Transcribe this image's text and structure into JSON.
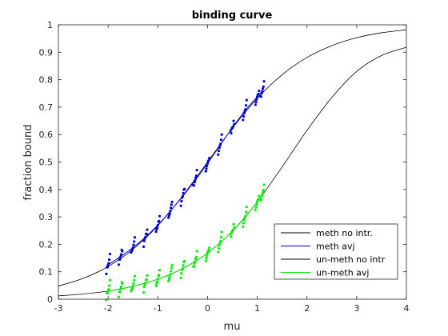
{
  "chart_data": {
    "type": "line",
    "title": "binding curve",
    "xlabel": "mu",
    "ylabel": "fraction bound",
    "xlim": [
      -3,
      4
    ],
    "ylim": [
      0,
      1
    ],
    "xticks": [
      -3,
      -2,
      -1,
      0,
      1,
      2,
      3,
      4
    ],
    "yticks": [
      0,
      0.1,
      0.2,
      0.3,
      0.4,
      0.5,
      0.6,
      0.7,
      0.8,
      0.9,
      1
    ],
    "xtick_labels": [
      "-3",
      "-2",
      "-1",
      "0",
      "1",
      "2",
      "3",
      "4"
    ],
    "ytick_labels": [
      "0",
      "0.1",
      "0.2",
      "0.3",
      "0.4",
      "0.5",
      "0.6",
      "0.7",
      "0.8",
      "0.9",
      "1"
    ],
    "grid": false,
    "legend_position": "bottom-right",
    "series": [
      {
        "name": "meth no intr.",
        "kind": "line",
        "color": "#000000",
        "x": [
          -3,
          -2.5,
          -2,
          -1.5,
          -1,
          -0.5,
          0,
          0.5,
          1,
          1.5,
          2,
          2.5,
          3,
          3.5,
          4
        ],
        "y": [
          0.048,
          0.076,
          0.119,
          0.182,
          0.268,
          0.377,
          0.5,
          0.623,
          0.732,
          0.818,
          0.881,
          0.924,
          0.953,
          0.971,
          0.982
        ]
      },
      {
        "name": "meth avj",
        "kind": "scatter",
        "color": "#0000dd",
        "x": [
          -2,
          -1.75,
          -1.5,
          -1.25,
          -1,
          -0.75,
          -0.5,
          -0.25,
          0,
          0.25,
          0.5,
          0.75,
          1,
          1.1
        ],
        "y": [
          0.125,
          0.155,
          0.188,
          0.226,
          0.27,
          0.321,
          0.375,
          0.433,
          0.495,
          0.56,
          0.625,
          0.686,
          0.738,
          0.757
        ]
      },
      {
        "name": "un-meth no intr",
        "kind": "line",
        "color": "#000000",
        "x": [
          -3,
          -2.5,
          -2,
          -1.5,
          -1,
          -0.5,
          0,
          0.5,
          1,
          1.5,
          2,
          2.5,
          3,
          3.5,
          4
        ],
        "y": [
          0.012,
          0.019,
          0.03,
          0.047,
          0.073,
          0.112,
          0.168,
          0.248,
          0.355,
          0.482,
          0.615,
          0.735,
          0.83,
          0.888,
          0.918
        ]
      },
      {
        "name": "un-meth avj",
        "kind": "scatter",
        "color": "#00ee00",
        "x": [
          -2,
          -1.75,
          -1.5,
          -1.25,
          -1,
          -0.75,
          -0.5,
          -0.25,
          0,
          0.25,
          0.5,
          0.75,
          1,
          1.1
        ],
        "y": [
          0.03,
          0.037,
          0.047,
          0.059,
          0.073,
          0.09,
          0.112,
          0.137,
          0.168,
          0.205,
          0.248,
          0.297,
          0.355,
          0.38
        ]
      }
    ]
  }
}
